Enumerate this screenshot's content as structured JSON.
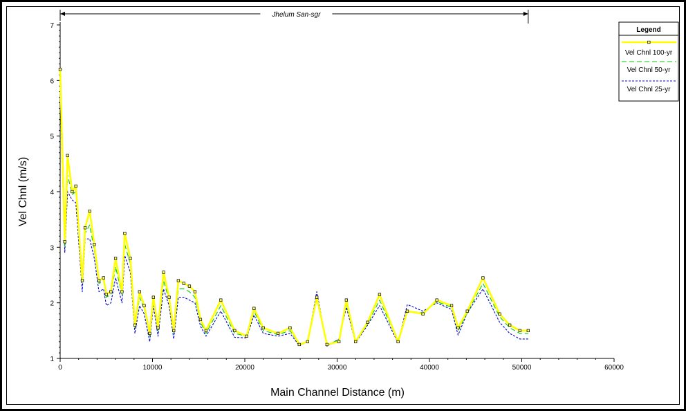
{
  "chart_data": {
    "type": "line",
    "title": "",
    "xlabel": "Main Channel Distance (m)",
    "ylabel": "Vel Chnl (m/s)",
    "xlim": [
      0,
      60000
    ],
    "ylim": [
      1,
      7
    ],
    "xticks": [
      0,
      10000,
      20000,
      30000,
      40000,
      50000,
      60000
    ],
    "yticks": [
      1,
      2,
      3,
      4,
      5,
      6,
      7
    ],
    "reach_label": "Jhelum San-sgr",
    "reach_range": [
      0,
      50700
    ],
    "legend": {
      "title": "Legend",
      "placement": "top-right"
    },
    "x": [
      0,
      500,
      800,
      1300,
      1700,
      2400,
      2700,
      3200,
      3700,
      4200,
      4700,
      5000,
      5500,
      6000,
      6700,
      7000,
      7600,
      8100,
      8600,
      9100,
      9700,
      10100,
      10600,
      11200,
      11800,
      12300,
      12800,
      13400,
      14000,
      14600,
      15200,
      15800,
      17400,
      18900,
      20200,
      21000,
      22000,
      23600,
      24900,
      25900,
      26800,
      27800,
      28900,
      30200,
      31000,
      32000,
      33300,
      34600,
      36600,
      37600,
      39300,
      40800,
      42400,
      43100,
      44100,
      45800,
      47600,
      48700,
      49800,
      50700
    ],
    "series": [
      {
        "name": "Vel Chnl 100-yr",
        "color": "#ffff00",
        "style": "solid",
        "values": [
          6.2,
          3.1,
          4.65,
          4.0,
          4.1,
          2.4,
          3.35,
          3.65,
          3.05,
          2.4,
          2.45,
          2.15,
          2.2,
          2.8,
          2.2,
          3.25,
          2.8,
          1.6,
          2.2,
          1.95,
          1.45,
          2.1,
          1.55,
          2.55,
          2.1,
          1.5,
          2.4,
          2.35,
          2.3,
          2.2,
          1.7,
          1.5,
          2.05,
          1.5,
          1.4,
          1.9,
          1.55,
          1.45,
          1.55,
          1.25,
          1.3,
          2.1,
          1.25,
          1.3,
          2.05,
          1.3,
          1.65,
          2.15,
          1.3,
          1.85,
          1.8,
          2.05,
          1.95,
          1.55,
          1.85,
          2.45,
          1.8,
          1.6,
          1.5,
          1.5
        ]
      },
      {
        "name": "Vel Chnl 50-yr",
        "color": "#00cc00",
        "style": "dashed",
        "values": [
          6.0,
          3.0,
          4.3,
          3.95,
          4.0,
          2.35,
          3.25,
          3.4,
          2.95,
          2.35,
          2.4,
          2.1,
          2.15,
          2.65,
          2.15,
          3.05,
          2.7,
          1.55,
          2.1,
          1.9,
          1.4,
          2.05,
          1.5,
          2.4,
          2.05,
          1.45,
          2.25,
          2.25,
          2.2,
          2.1,
          1.65,
          1.45,
          1.95,
          1.45,
          1.4,
          1.85,
          1.5,
          1.43,
          1.5,
          1.25,
          1.3,
          2.12,
          1.25,
          1.33,
          1.98,
          1.3,
          1.62,
          2.05,
          1.3,
          1.85,
          1.82,
          2.02,
          1.92,
          1.5,
          1.82,
          2.35,
          1.75,
          1.55,
          1.45,
          1.45
        ]
      },
      {
        "name": "Vel Chnl 25-yr",
        "color": "#0000cc",
        "style": "dotted",
        "values": [
          5.8,
          2.9,
          4.0,
          3.85,
          3.8,
          2.2,
          3.15,
          3.15,
          2.8,
          2.2,
          2.25,
          1.95,
          2.0,
          2.45,
          2.0,
          2.85,
          2.55,
          1.45,
          1.95,
          1.8,
          1.3,
          1.95,
          1.4,
          2.25,
          1.95,
          1.35,
          2.1,
          2.1,
          2.05,
          2.0,
          1.58,
          1.4,
          1.85,
          1.38,
          1.37,
          1.78,
          1.45,
          1.4,
          1.45,
          1.23,
          1.3,
          2.2,
          1.22,
          1.35,
          1.92,
          1.28,
          1.6,
          1.95,
          1.28,
          1.97,
          1.85,
          2.0,
          1.88,
          1.42,
          1.82,
          2.25,
          1.65,
          1.45,
          1.35,
          1.35
        ]
      }
    ]
  }
}
